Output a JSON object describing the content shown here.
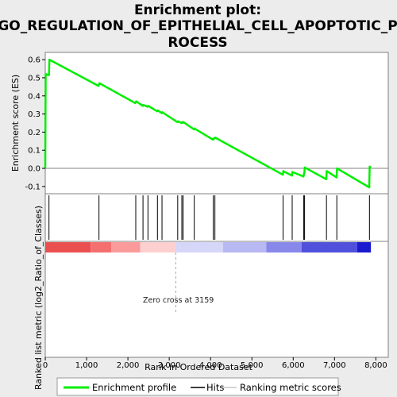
{
  "title_lines": [
    "Enrichment plot:",
    "GO_REGULATION_OF_EPITHELIAL_CELL_APOPTOTIC_P",
    "ROCESS"
  ],
  "colors": {
    "profile": "#00ee00",
    "hits": "#000000",
    "positive": "#ff0000",
    "negative": "#0000ff",
    "background": "#ececec",
    "panel": "#ffffff"
  },
  "chart_data": {
    "type": "line",
    "xlabel": "Rank in Ordered Dataset",
    "ylabel_top": "Enrichment score (ES)",
    "ylabel_bottom": "Ranked list metric (log2_Ratio_of_Classes)",
    "xlim": [
      0,
      8300
    ],
    "ylim": [
      -0.14,
      0.64
    ],
    "x_ticks": [
      0,
      1000,
      2000,
      3000,
      4000,
      5000,
      6000,
      7000,
      8000
    ],
    "x_tick_labels": [
      "0",
      "1,000",
      "2,000",
      "3,000",
      "4,000",
      "5,000",
      "6,000",
      "7,000",
      "8,000"
    ],
    "y_ticks": [
      -0.1,
      0.0,
      0.1,
      0.2,
      0.3,
      0.4,
      0.5,
      0.6
    ],
    "y_tick_labels": [
      "-0.1",
      "0.0",
      "0.1",
      "0.2",
      "0.3",
      "0.4",
      "0.5",
      "0.6"
    ],
    "grid": false,
    "series": [
      {
        "name": "Enrichment profile",
        "x": [
          0,
          10,
          90,
          100,
          1290,
          1310,
          2180,
          2200,
          2360,
          2370,
          2480,
          2490,
          2710,
          2720,
          2820,
          2830,
          3200,
          3210,
          3300,
          3310,
          3330,
          3340,
          3600,
          3610,
          4060,
          4070,
          4100,
          4110,
          5750,
          5760,
          5970,
          5980,
          6250,
          6260,
          6270,
          6280,
          6800,
          6810,
          7050,
          7060,
          7840,
          7850,
          7880
        ],
        "y": [
          0.0,
          0.52,
          0.515,
          0.6,
          0.455,
          0.47,
          0.36,
          0.37,
          0.345,
          0.35,
          0.34,
          0.345,
          0.315,
          0.32,
          0.305,
          0.31,
          0.255,
          0.26,
          0.25,
          0.255,
          0.252,
          0.256,
          0.215,
          0.22,
          0.158,
          0.165,
          0.165,
          0.17,
          -0.035,
          -0.015,
          -0.04,
          -0.02,
          -0.045,
          -0.03,
          -0.025,
          0.005,
          -0.06,
          -0.015,
          -0.05,
          0.0,
          -0.105,
          0.01,
          0.005
        ]
      }
    ],
    "hits": [
      90,
      1300,
      2190,
      2365,
      2485,
      2715,
      2825,
      3205,
      3305,
      3335,
      3605,
      4065,
      4105,
      5755,
      5975,
      6255,
      6275,
      6805,
      7055,
      7845
    ],
    "zero_cross_rank": 3159,
    "zero_cross_text": "Zero cross at 3159",
    "metric_segments": [
      {
        "from": 0,
        "to": 1100,
        "color": "#ea5050"
      },
      {
        "from": 1100,
        "to": 1600,
        "color": "#f47070"
      },
      {
        "from": 1600,
        "to": 2300,
        "color": "#fb9a9a"
      },
      {
        "from": 2300,
        "to": 3159,
        "color": "#fcd0d0"
      },
      {
        "from": 3159,
        "to": 4300,
        "color": "#d6d6f8"
      },
      {
        "from": 4300,
        "to": 5350,
        "color": "#b8b8f2"
      },
      {
        "from": 5350,
        "to": 6200,
        "color": "#8888ea"
      },
      {
        "from": 6200,
        "to": 7550,
        "color": "#5050dd"
      },
      {
        "from": 7550,
        "to": 7880,
        "color": "#1a1ad0"
      }
    ],
    "legend_items": [
      {
        "label": "Enrichment profile",
        "color": "#00ee00"
      },
      {
        "label": "Hits",
        "color": "#000000"
      },
      {
        "label": "Ranking metric scores",
        "color": "#aaaaaa"
      }
    ]
  }
}
